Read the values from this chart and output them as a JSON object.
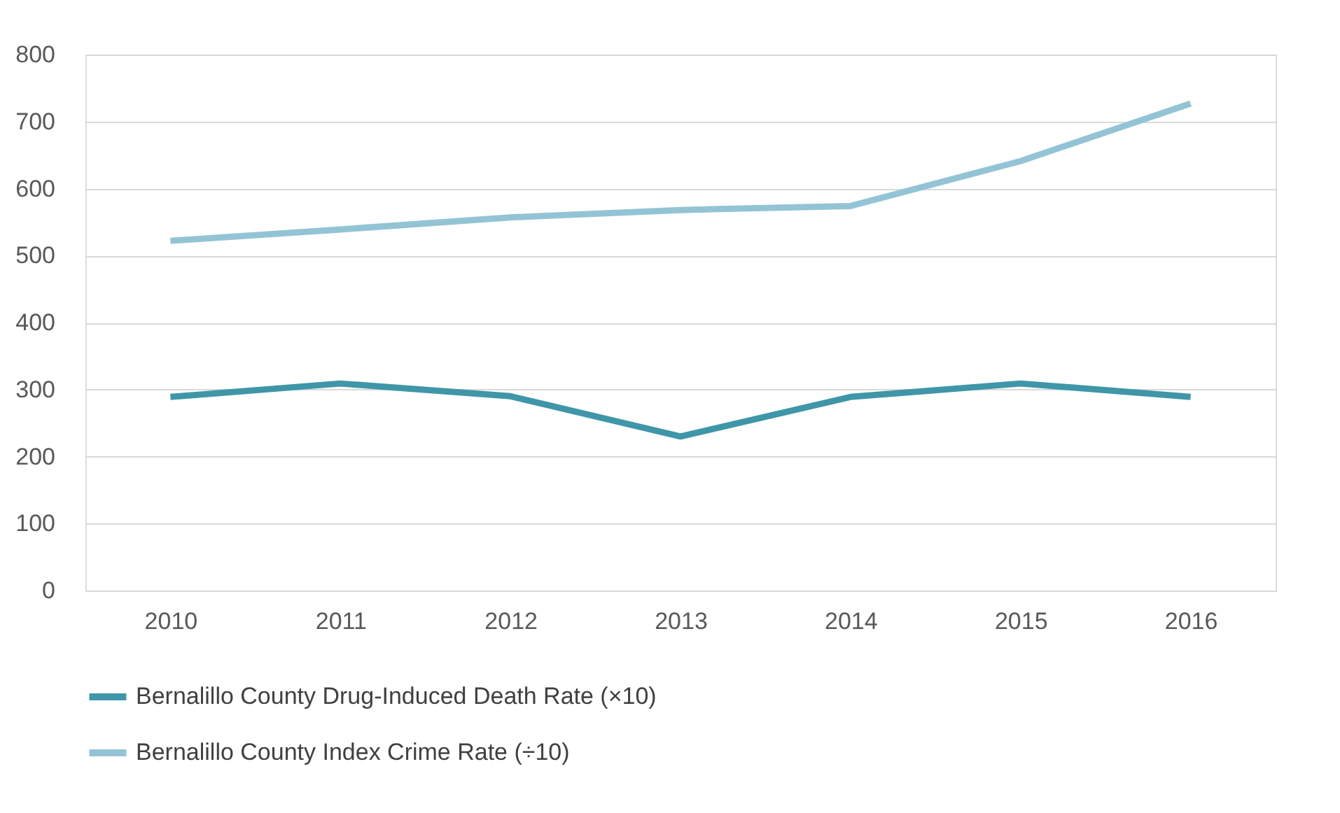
{
  "chart_data": {
    "type": "line",
    "categories": [
      "2010",
      "2011",
      "2012",
      "2013",
      "2014",
      "2015",
      "2016"
    ],
    "series": [
      {
        "name": "Bernalillo County Drug-Induced Death Rate (×10)",
        "color": "#3f96a8",
        "values": [
          289,
          309,
          290,
          230,
          289,
          309,
          289
        ]
      },
      {
        "name": "Bernalillo County Index Crime Rate (÷10)",
        "color": "#93c4d5",
        "values": [
          522,
          539,
          557,
          568,
          574,
          641,
          727
        ]
      }
    ],
    "ylim": [
      0,
      800
    ],
    "yticks": [
      0,
      100,
      200,
      300,
      400,
      500,
      600,
      700,
      800
    ],
    "grid": "y",
    "legend": "bottom",
    "marker": "none",
    "line_style": "solid"
  }
}
